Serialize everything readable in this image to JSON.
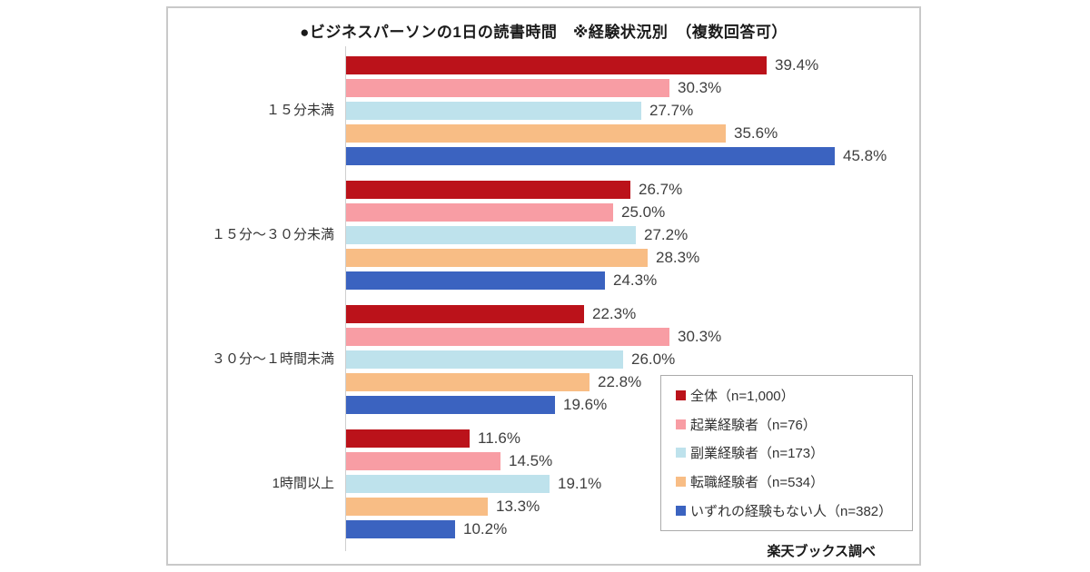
{
  "chart": {
    "title": "●ビジネスパーソンの1日の読書時間　※経験状況別　（複数回答可）",
    "source": "楽天ブックス調べ"
  },
  "chart_data": {
    "type": "bar",
    "orientation": "horizontal",
    "title": "●ビジネスパーソンの1日の読書時間　※経験状況別　（複数回答可）",
    "categories": [
      "１５分未満",
      "１５分～３０分未満",
      "３０分～１時間未満",
      "1時間以上"
    ],
    "series": [
      {
        "name": "全体",
        "legend_label": "全体（n=1,000）",
        "color": "#bb121a",
        "values": [
          39.4,
          26.7,
          22.3,
          11.6
        ]
      },
      {
        "name": "起業経験者",
        "legend_label": "起業経験者（n=76）",
        "color": "#f89da4",
        "values": [
          30.3,
          25.0,
          30.3,
          14.5
        ]
      },
      {
        "name": "副業経験者",
        "legend_label": "副業経験者（n=173）",
        "color": "#bee2ec",
        "values": [
          27.7,
          27.2,
          26.0,
          19.1
        ]
      },
      {
        "name": "転職経験者",
        "legend_label": "転職経験者（n=534）",
        "color": "#f8bd85",
        "values": [
          35.6,
          28.3,
          22.8,
          13.3
        ]
      },
      {
        "name": "いずれの経験もない人",
        "legend_label": "いずれの経験もない人（n=382）",
        "color": "#3b63c0",
        "values": [
          45.8,
          24.3,
          19.6,
          10.2
        ]
      }
    ],
    "value_suffix": "%",
    "xlim": [
      0,
      50
    ],
    "grid": false,
    "legend_position": "inside-bottom-right",
    "source": "楽天ブックス調べ"
  }
}
